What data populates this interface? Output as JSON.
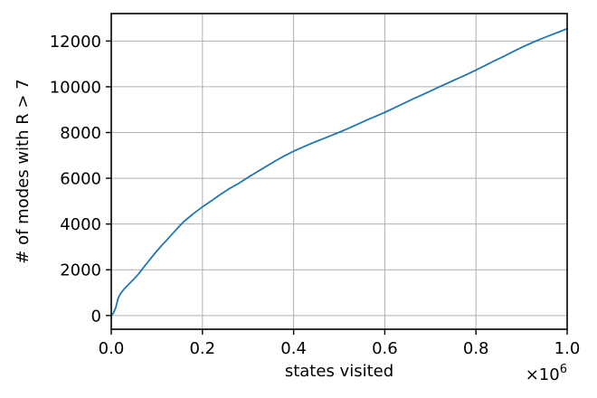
{
  "chart_data": {
    "type": "line",
    "xlabel": "states visited",
    "ylabel": "# of modes with R > 7",
    "x_offset_base": "×10",
    "x_offset_exp": "6",
    "xlim": [
      0.0,
      1.0
    ],
    "ylim": [
      -600,
      13200
    ],
    "xticks": [
      0.0,
      0.2,
      0.4,
      0.6,
      0.8,
      1.0
    ],
    "xtick_labels": [
      "0.0",
      "0.2",
      "0.4",
      "0.6",
      "0.8",
      "1.0"
    ],
    "yticks": [
      0,
      2000,
      4000,
      6000,
      8000,
      10000,
      12000
    ],
    "ytick_labels": [
      "0",
      "2000",
      "4000",
      "6000",
      "8000",
      "10000",
      "12000"
    ],
    "grid": true,
    "series_color": "#1f77b4",
    "series": [
      {
        "x": [
          0.0,
          0.005,
          0.01,
          0.015,
          0.02,
          0.03,
          0.04,
          0.05,
          0.06,
          0.07,
          0.08,
          0.09,
          0.1,
          0.11,
          0.12,
          0.13,
          0.14,
          0.15,
          0.16,
          0.18,
          0.2,
          0.22,
          0.24,
          0.26,
          0.28,
          0.3,
          0.32,
          0.34,
          0.36,
          0.38,
          0.4,
          0.42,
          0.44,
          0.46,
          0.48,
          0.5,
          0.52,
          0.54,
          0.56,
          0.58,
          0.6,
          0.62,
          0.64,
          0.66,
          0.68,
          0.7,
          0.72,
          0.74,
          0.76,
          0.78,
          0.8,
          0.82,
          0.84,
          0.86,
          0.88,
          0.9,
          0.92,
          0.94,
          0.96,
          0.98,
          1.0
        ],
        "y": [
          0,
          120,
          350,
          750,
          950,
          1200,
          1400,
          1600,
          1820,
          2080,
          2330,
          2580,
          2820,
          3050,
          3260,
          3480,
          3700,
          3920,
          4120,
          4450,
          4750,
          5020,
          5300,
          5560,
          5780,
          6040,
          6280,
          6520,
          6760,
          6980,
          7180,
          7360,
          7530,
          7690,
          7850,
          8010,
          8180,
          8360,
          8540,
          8710,
          8880,
          9070,
          9260,
          9450,
          9630,
          9810,
          10000,
          10180,
          10360,
          10540,
          10730,
          10930,
          11130,
          11320,
          11520,
          11720,
          11900,
          12070,
          12230,
          12380,
          12540
        ]
      }
    ]
  }
}
